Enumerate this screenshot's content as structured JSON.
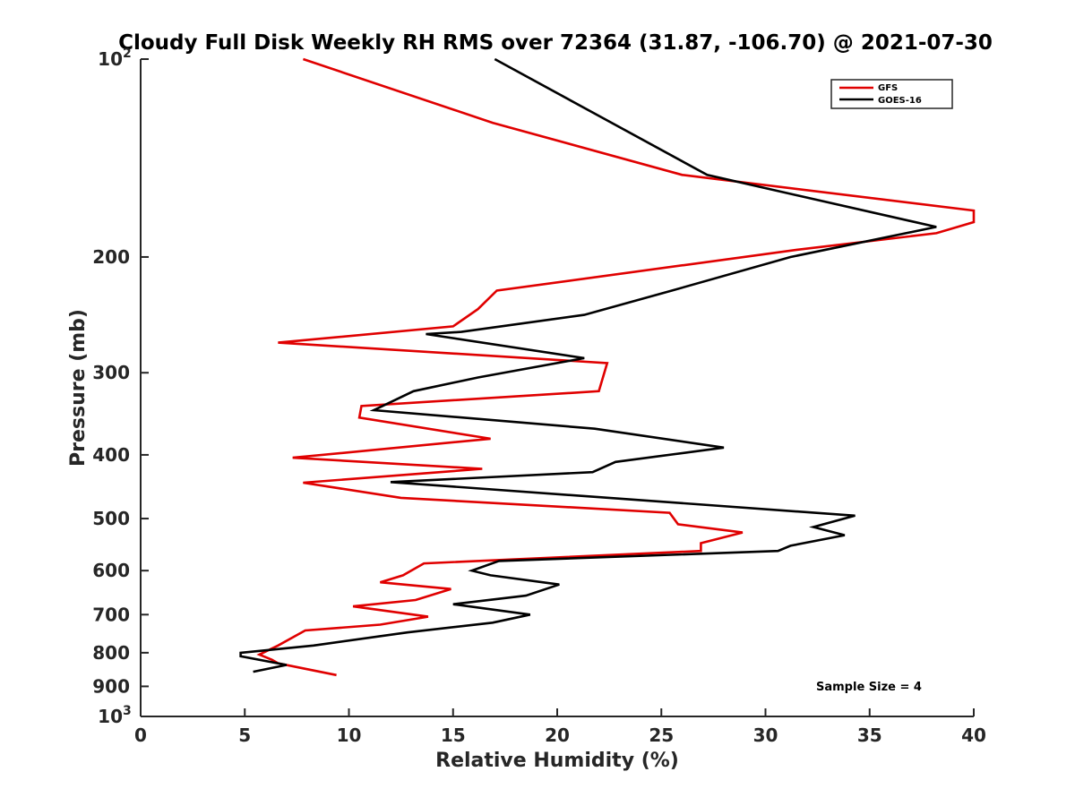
{
  "chart_data": {
    "type": "line",
    "title": "Cloudy Full Disk Weekly RH RMS over 72364 (31.87, -106.70) @ 2021-07-30",
    "xlabel": "Relative Humidity (%)",
    "ylabel": "Pressure (mb)",
    "xlim": [
      0,
      40
    ],
    "ylim": [
      100,
      1000
    ],
    "y_scale": "log",
    "y_reversed": true,
    "x_ticks": [
      "0",
      "5",
      "10",
      "15",
      "20",
      "25",
      "30",
      "35",
      "40"
    ],
    "y_ticks": [
      {
        "value": 100,
        "label": "10",
        "sup": "2"
      },
      {
        "value": 200,
        "label": "200",
        "sup": ""
      },
      {
        "value": 300,
        "label": "300",
        "sup": ""
      },
      {
        "value": 400,
        "label": "400",
        "sup": ""
      },
      {
        "value": 500,
        "label": "500",
        "sup": ""
      },
      {
        "value": 600,
        "label": "600",
        "sup": ""
      },
      {
        "value": 700,
        "label": "700",
        "sup": ""
      },
      {
        "value": 800,
        "label": "800",
        "sup": ""
      },
      {
        "value": 900,
        "label": "900",
        "sup": ""
      },
      {
        "value": 1000,
        "label": "10",
        "sup": "3"
      }
    ],
    "grid": false,
    "legend_position": "top-right",
    "annotation": "Sample Size = 4",
    "series": [
      {
        "name": "GFS",
        "color": "#e00000",
        "points": [
          [
            7.8,
            100
          ],
          [
            16.9,
            125
          ],
          [
            26.0,
            150
          ],
          [
            40.0,
            170
          ],
          [
            40.0,
            177
          ],
          [
            38.2,
            184
          ],
          [
            31.5,
            195
          ],
          [
            17.1,
            225
          ],
          [
            16.2,
            240
          ],
          [
            15.0,
            255
          ],
          [
            6.6,
            270
          ],
          [
            22.4,
            290
          ],
          [
            22.0,
            320
          ],
          [
            10.6,
            337
          ],
          [
            10.5,
            351
          ],
          [
            16.8,
            378
          ],
          [
            7.3,
            404
          ],
          [
            16.4,
            420
          ],
          [
            7.8,
            441
          ],
          [
            12.5,
            465
          ],
          [
            25.4,
            490
          ],
          [
            25.8,
            510
          ],
          [
            28.9,
            525
          ],
          [
            26.9,
            545
          ],
          [
            26.9,
            560
          ],
          [
            13.6,
            585
          ],
          [
            12.6,
            610
          ],
          [
            11.5,
            625
          ],
          [
            14.9,
            640
          ],
          [
            13.2,
            665
          ],
          [
            10.2,
            680
          ],
          [
            13.8,
            705
          ],
          [
            11.5,
            725
          ],
          [
            7.9,
            740
          ],
          [
            6.6,
            780
          ],
          [
            5.7,
            805
          ],
          [
            6.3,
            820
          ],
          [
            6.6,
            830
          ],
          [
            7.8,
            845
          ],
          [
            9.4,
            865
          ]
        ]
      },
      {
        "name": "GOES-16",
        "color": "#000000",
        "points": [
          [
            17.0,
            100
          ],
          [
            27.2,
            150
          ],
          [
            38.2,
            180
          ],
          [
            31.2,
            200
          ],
          [
            25.5,
            225
          ],
          [
            21.3,
            245
          ],
          [
            15.4,
            260
          ],
          [
            13.7,
            262
          ],
          [
            21.3,
            285
          ],
          [
            16.2,
            305
          ],
          [
            13.1,
            320
          ],
          [
            11.2,
            342
          ],
          [
            21.8,
            365
          ],
          [
            28.0,
            390
          ],
          [
            22.8,
            410
          ],
          [
            21.7,
            425
          ],
          [
            12.0,
            440
          ],
          [
            34.3,
            495
          ],
          [
            32.3,
            515
          ],
          [
            33.8,
            530
          ],
          [
            31.2,
            550
          ],
          [
            30.6,
            560
          ],
          [
            17.2,
            580
          ],
          [
            15.9,
            600
          ],
          [
            16.8,
            610
          ],
          [
            20.1,
            630
          ],
          [
            18.5,
            655
          ],
          [
            15.0,
            675
          ],
          [
            18.7,
            700
          ],
          [
            16.9,
            720
          ],
          [
            12.8,
            745
          ],
          [
            8.3,
            780
          ],
          [
            4.8,
            800
          ],
          [
            4.8,
            810
          ],
          [
            7.0,
            835
          ],
          [
            5.4,
            855
          ]
        ]
      }
    ]
  }
}
